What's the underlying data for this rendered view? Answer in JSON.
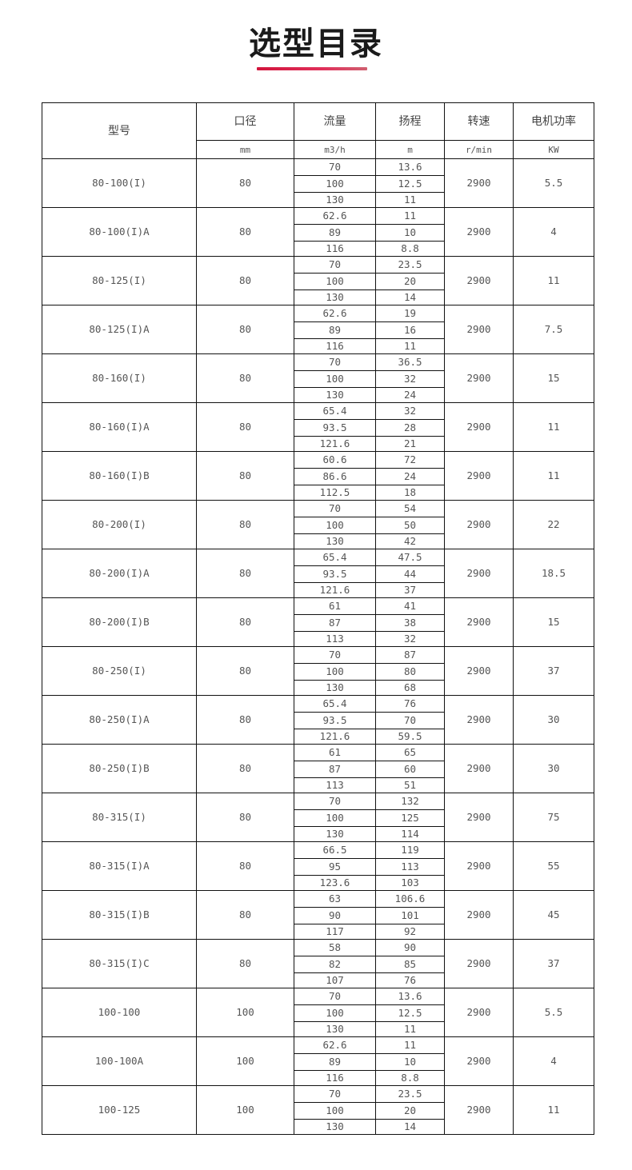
{
  "title": "选型目录",
  "accent_color": "#d2143c",
  "headers": {
    "model": "型号",
    "diameter": "口径",
    "flow": "流量",
    "head": "扬程",
    "speed": "转速",
    "power": "电机功率"
  },
  "units": {
    "diameter": "mm",
    "flow": "m3/h",
    "head": "m",
    "speed": "r/min",
    "power": "KW"
  },
  "rows": [
    {
      "model": "80-100(I)",
      "diameter": "80",
      "flow": [
        "70",
        "100",
        "130"
      ],
      "head": [
        "13.6",
        "12.5",
        "11"
      ],
      "speed": "2900",
      "power": "5.5"
    },
    {
      "model": "80-100(I)A",
      "diameter": "80",
      "flow": [
        "62.6",
        "89",
        "116"
      ],
      "head": [
        "11",
        "10",
        "8.8"
      ],
      "speed": "2900",
      "power": "4"
    },
    {
      "model": "80-125(I)",
      "diameter": "80",
      "flow": [
        "70",
        "100",
        "130"
      ],
      "head": [
        "23.5",
        "20",
        "14"
      ],
      "speed": "2900",
      "power": "11"
    },
    {
      "model": "80-125(I)A",
      "diameter": "80",
      "flow": [
        "62.6",
        "89",
        "116"
      ],
      "head": [
        "19",
        "16",
        "11"
      ],
      "speed": "2900",
      "power": "7.5"
    },
    {
      "model": "80-160(I)",
      "diameter": "80",
      "flow": [
        "70",
        "100",
        "130"
      ],
      "head": [
        "36.5",
        "32",
        "24"
      ],
      "speed": "2900",
      "power": "15"
    },
    {
      "model": "80-160(I)A",
      "diameter": "80",
      "flow": [
        "65.4",
        "93.5",
        "121.6"
      ],
      "head": [
        "32",
        "28",
        "21"
      ],
      "speed": "2900",
      "power": "11"
    },
    {
      "model": "80-160(I)B",
      "diameter": "80",
      "flow": [
        "60.6",
        "86.6",
        "112.5"
      ],
      "head": [
        "72",
        "24",
        "18"
      ],
      "speed": "2900",
      "power": "11"
    },
    {
      "model": "80-200(I)",
      "diameter": "80",
      "flow": [
        "70",
        "100",
        "130"
      ],
      "head": [
        "54",
        "50",
        "42"
      ],
      "speed": "2900",
      "power": "22"
    },
    {
      "model": "80-200(I)A",
      "diameter": "80",
      "flow": [
        "65.4",
        "93.5",
        "121.6"
      ],
      "head": [
        "47.5",
        "44",
        "37"
      ],
      "speed": "2900",
      "power": "18.5"
    },
    {
      "model": "80-200(I)B",
      "diameter": "80",
      "flow": [
        "61",
        "87",
        "113"
      ],
      "head": [
        "41",
        "38",
        "32"
      ],
      "speed": "2900",
      "power": "15"
    },
    {
      "model": "80-250(I)",
      "diameter": "80",
      "flow": [
        "70",
        "100",
        "130"
      ],
      "head": [
        "87",
        "80",
        "68"
      ],
      "speed": "2900",
      "power": "37"
    },
    {
      "model": "80-250(I)A",
      "diameter": "80",
      "flow": [
        "65.4",
        "93.5",
        "121.6"
      ],
      "head": [
        "76",
        "70",
        "59.5"
      ],
      "speed": "2900",
      "power": "30"
    },
    {
      "model": "80-250(I)B",
      "diameter": "80",
      "flow": [
        "61",
        "87",
        "113"
      ],
      "head": [
        "65",
        "60",
        "51"
      ],
      "speed": "2900",
      "power": "30"
    },
    {
      "model": "80-315(I)",
      "diameter": "80",
      "flow": [
        "70",
        "100",
        "130"
      ],
      "head": [
        "132",
        "125",
        "114"
      ],
      "speed": "2900",
      "power": "75"
    },
    {
      "model": "80-315(I)A",
      "diameter": "80",
      "flow": [
        "66.5",
        "95",
        "123.6"
      ],
      "head": [
        "119",
        "113",
        "103"
      ],
      "speed": "2900",
      "power": "55"
    },
    {
      "model": "80-315(I)B",
      "diameter": "80",
      "flow": [
        "63",
        "90",
        "117"
      ],
      "head": [
        "106.6",
        "101",
        "92"
      ],
      "speed": "2900",
      "power": "45"
    },
    {
      "model": "80-315(I)C",
      "diameter": "80",
      "flow": [
        "58",
        "82",
        "107"
      ],
      "head": [
        "90",
        "85",
        "76"
      ],
      "speed": "2900",
      "power": "37"
    },
    {
      "model": "100-100",
      "diameter": "100",
      "flow": [
        "70",
        "100",
        "130"
      ],
      "head": [
        "13.6",
        "12.5",
        "11"
      ],
      "speed": "2900",
      "power": "5.5"
    },
    {
      "model": "100-100A",
      "diameter": "100",
      "flow": [
        "62.6",
        "89",
        "116"
      ],
      "head": [
        "11",
        "10",
        "8.8"
      ],
      "speed": "2900",
      "power": "4"
    },
    {
      "model": "100-125",
      "diameter": "100",
      "flow": [
        "70",
        "100",
        "130"
      ],
      "head": [
        "23.5",
        "20",
        "14"
      ],
      "speed": "2900",
      "power": "11"
    }
  ]
}
